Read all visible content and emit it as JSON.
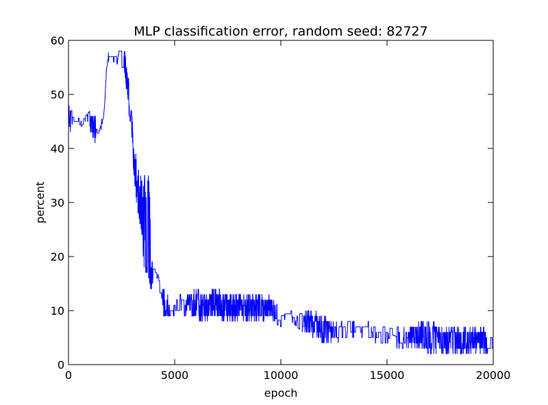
{
  "chart_data": {
    "type": "line",
    "title": "MLP classification error, random seed: 82727",
    "xlabel": "epoch",
    "ylabel": "percent",
    "xlim": [
      0,
      20000
    ],
    "ylim": [
      0,
      60
    ],
    "xticks": [
      0,
      5000,
      10000,
      15000,
      20000
    ],
    "xtick_labels": [
      "0",
      "5000",
      "10000",
      "15000",
      "20000"
    ],
    "yticks": [
      0,
      10,
      20,
      30,
      40,
      50,
      60
    ],
    "ytick_labels": [
      "0",
      "10",
      "20",
      "30",
      "40",
      "50",
      "60"
    ],
    "grid": false,
    "series": [
      {
        "name": "classification error",
        "color": "#0000ff",
        "envelope": {
          "x": [
            0,
            100,
            200,
            300,
            400,
            600,
            800,
            1000,
            1200,
            1400,
            1600,
            1700,
            1800,
            1900,
            2000,
            2200,
            2400,
            2500,
            2600,
            2700,
            2800,
            2900,
            3000,
            3100,
            3200,
            3300,
            3400,
            3500,
            3600,
            3700,
            3800,
            3900,
            4000,
            4200,
            4400,
            4500,
            4700,
            5000,
            5500,
            6000,
            6500,
            6800,
            7000,
            7500,
            8000,
            8500,
            9000,
            9500,
            10000,
            10500,
            11000,
            11500,
            12000,
            12500,
            13000,
            13500,
            14000,
            14500,
            15000,
            15500,
            16000,
            16500,
            17000,
            17500,
            18000,
            18500,
            19000,
            19500,
            20000
          ],
          "low": [
            44,
            43,
            45,
            45,
            45,
            44,
            45,
            43,
            41,
            42,
            44,
            48,
            55,
            56,
            56,
            56,
            55,
            55,
            55,
            51,
            48,
            44,
            40,
            33,
            30,
            27,
            25,
            20,
            16,
            17,
            14,
            13,
            16,
            16,
            11,
            9,
            9,
            9,
            9,
            8,
            8,
            9,
            8,
            8,
            8,
            8,
            8,
            8,
            7,
            8,
            6,
            5,
            4,
            4,
            4,
            4,
            4,
            4,
            4,
            3,
            3,
            3,
            2,
            2,
            2,
            2,
            2,
            2,
            2
          ],
          "high": [
            50,
            48,
            47,
            46,
            46,
            46,
            46,
            47,
            46,
            45,
            46,
            50,
            57,
            58,
            58,
            58,
            58,
            58,
            59,
            57,
            55,
            50,
            46,
            39,
            39,
            36,
            35,
            34,
            35,
            35,
            35,
            21,
            18,
            17,
            15,
            14,
            13,
            13,
            13,
            14,
            13,
            15,
            14,
            13,
            13,
            13,
            13,
            13,
            10,
            10,
            10,
            10,
            9,
            8,
            8,
            8,
            8,
            8,
            7,
            7,
            7,
            8,
            8,
            7,
            7,
            7,
            7,
            7,
            5
          ]
        }
      }
    ]
  }
}
